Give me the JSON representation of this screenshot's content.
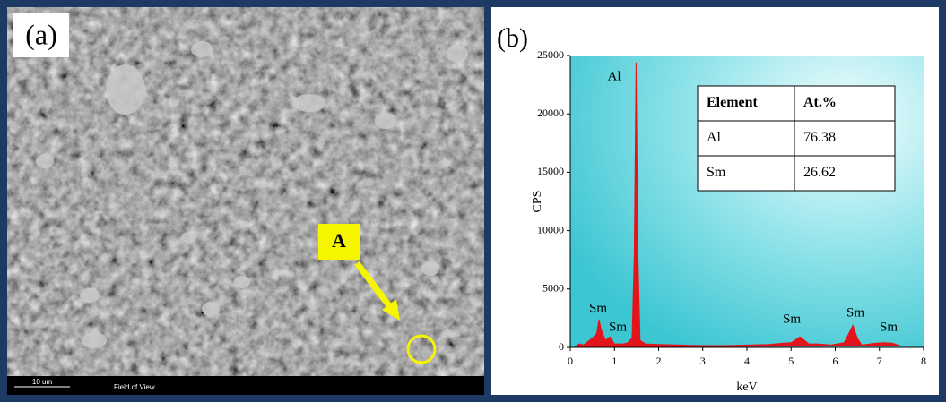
{
  "panels": {
    "a": {
      "label": "(a)",
      "marker": "A",
      "scale_bar": "10 um",
      "field_label": "Field of View"
    },
    "b": {
      "label": "(b)"
    }
  },
  "chart_data": {
    "type": "area",
    "xlabel": "keV",
    "ylabel": "CPS",
    "xlim": [
      0,
      8
    ],
    "xticks": [
      0,
      1,
      2,
      3,
      4,
      5,
      6,
      7,
      8
    ],
    "ylim": [
      0,
      25000
    ],
    "yticks": [
      0,
      5000,
      10000,
      15000,
      20000,
      25000
    ],
    "x": [
      0.1,
      0.2,
      0.3,
      0.4,
      0.5,
      0.6,
      0.65,
      0.7,
      0.8,
      0.9,
      1.0,
      1.1,
      1.2,
      1.3,
      1.4,
      1.45,
      1.49,
      1.53,
      1.58,
      1.7,
      2.0,
      2.5,
      3.0,
      3.5,
      4.0,
      4.5,
      4.8,
      5.0,
      5.2,
      5.4,
      5.6,
      5.9,
      6.2,
      6.35,
      6.4,
      6.5,
      6.6,
      6.9,
      7.1,
      7.3,
      7.5
    ],
    "series": [
      {
        "color": "#e3141b",
        "values": [
          0,
          300,
          200,
          500,
          800,
          1200,
          2400,
          1500,
          600,
          900,
          300,
          300,
          300,
          400,
          800,
          8000,
          24400,
          8000,
          600,
          300,
          250,
          200,
          150,
          150,
          200,
          250,
          350,
          400,
          900,
          300,
          300,
          200,
          400,
          1500,
          1900,
          800,
          200,
          350,
          400,
          350,
          100
        ]
      }
    ],
    "annotations": [
      "Al",
      "Sm",
      "Sm",
      "Sm",
      "Sm",
      "Sm"
    ],
    "table": {
      "header": [
        "Element",
        "At.%"
      ],
      "rows": [
        [
          "Al",
          76.38
        ],
        [
          "Sm",
          26.62
        ]
      ]
    }
  }
}
